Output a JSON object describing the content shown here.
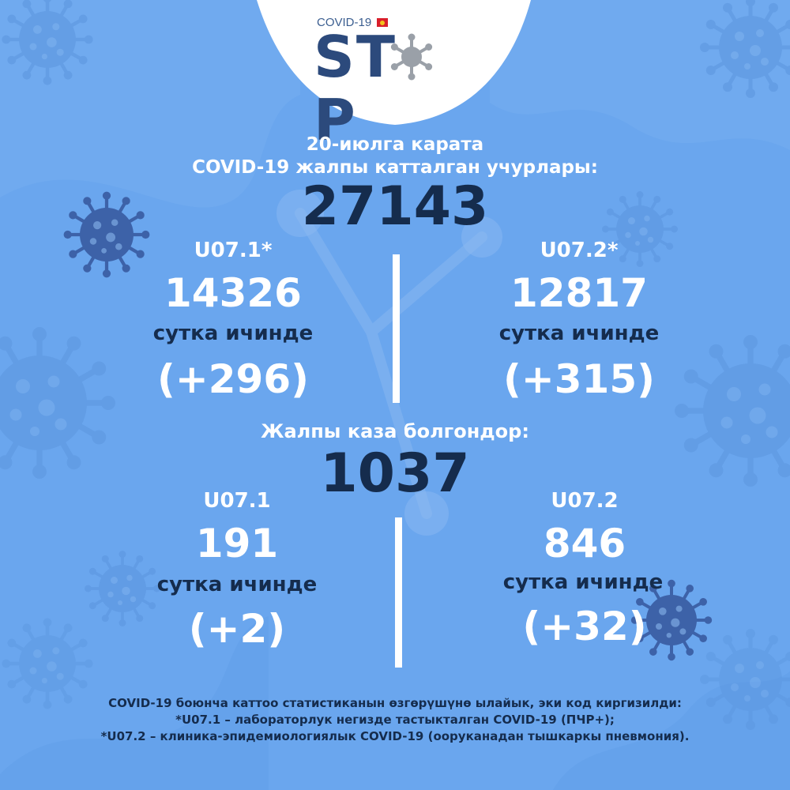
{
  "header": {
    "covid_label": "COVID-19",
    "stop_left": "ST",
    "stop_right": "P"
  },
  "section_total": {
    "date_line": "20-июлга карата",
    "title": "COVID-19 жалпы катталган учурлары:",
    "total": "27143",
    "left": {
      "code": "U07.1*",
      "value": "14326",
      "period": "сутка ичинде",
      "delta": "(+296)"
    },
    "right": {
      "code": "U07.2*",
      "value": "12817",
      "period": "сутка ичинде",
      "delta": "(+315)"
    }
  },
  "section_deaths": {
    "title": "Жалпы каза болгондор:",
    "total": "1037",
    "left": {
      "code": "U07.1",
      "value": "191",
      "period": "сутка ичинде",
      "delta": "(+2)"
    },
    "right": {
      "code": "U07.2",
      "value": "846",
      "period": "сутка ичинде",
      "delta": "(+32)"
    }
  },
  "footnote": {
    "line1": "COVID-19 боюнча каттоо статистиканын өзгөрүшүнө ылайык, эки код киргизилди:",
    "line2": "*U07.1 – лабораторлук негизде тастыкталган COVID-19 (ПЧР+);",
    "line3": "*U07.2 – клиника-эпидемиологиялык COVID-19 (ооруканадан тышкаркы пневмония)."
  },
  "icons": [
    "virus-icon",
    "flag-icon"
  ],
  "colors": {
    "background": "#6aa6ee",
    "white": "#ffffff",
    "navy": "#152c4d",
    "logo_blue": "#2c4a7c",
    "virus_dark": "#3d62a8",
    "virus_light": "#5b95de"
  }
}
